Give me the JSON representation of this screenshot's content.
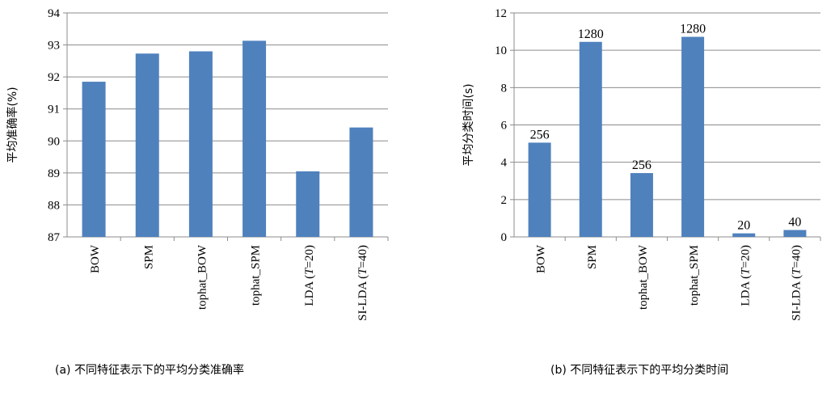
{
  "chart_data": [
    {
      "type": "bar",
      "categories": [
        "BOW",
        "SPM",
        "tophat_BOW",
        "tophat_SPM",
        "LDA (T=20)",
        "SI-LDA (T=40)"
      ],
      "values": [
        91.85,
        92.73,
        92.8,
        93.13,
        89.05,
        90.42
      ],
      "ylabel": "平均准确率(%)",
      "ylim": [
        87,
        94
      ],
      "yticks": [
        "87",
        "88",
        "89",
        "90",
        "91",
        "92",
        "93",
        "94"
      ],
      "data_labels": [],
      "caption": "(a)  不同特征表示下的平均分类准确率",
      "color": "#4f81bd",
      "grid": true
    },
    {
      "type": "bar",
      "categories": [
        "BOW",
        "SPM",
        "tophat_BOW",
        "tophat_SPM",
        "LDA (T=20)",
        "SI-LDA (T=40)"
      ],
      "values": [
        5.05,
        10.45,
        3.42,
        10.72,
        0.19,
        0.37
      ],
      "ylabel": "平均分类时间(s)",
      "ylim": [
        0,
        12
      ],
      "yticks": [
        "0",
        "2",
        "4",
        "6",
        "8",
        "10",
        "12"
      ],
      "data_labels": [
        "256",
        "1280",
        "256",
        "1280",
        "20",
        "40"
      ],
      "caption": "(b)  不同特征表示下的平均分类时间",
      "color": "#4f81bd",
      "grid": true
    }
  ]
}
